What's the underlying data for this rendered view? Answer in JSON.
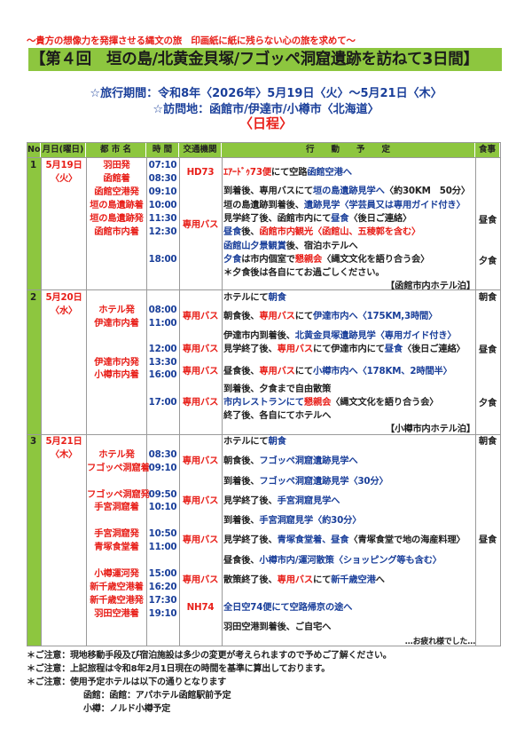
{
  "header": {
    "tagline": "～貴方の想像力を発揮させる縄文の旅　印画紙に紙に残らない心の旅を求めて～",
    "title": "【第４回　垣の島/北黄金貝塚/フゴッペ洞窟遺跡を訪ねて3日間】",
    "period": "☆旅行期間：令和8年〈2026年〉5月19日〈火〉～5月21日〈木〉",
    "visit": "☆訪問地：函館市/伊達市/小樽市〈北海道〉",
    "schedule_label": "〈日程〉"
  },
  "colors": {
    "accent_green": "#8dc63f",
    "red": "#e8201a",
    "blue": "#1a3f9a"
  },
  "table": {
    "columns": [
      "No",
      "月日(曜日)",
      "都 市 名",
      "時 間",
      "交通機関",
      "行　　動　　予　　定",
      "食事"
    ],
    "days": [
      {
        "no": "1",
        "date": "5月19日",
        "weekday": "〈火〉",
        "cities": [
          "羽田発",
          "函館着",
          "函館空港発",
          "垣の島遺跡着",
          "垣の島遺跡発",
          "函館市内着"
        ],
        "times": [
          "07:10",
          "08:30",
          "09:10",
          "10:00",
          "11:30",
          "12:30",
          "18:00"
        ],
        "transport": [
          "HD73",
          "専用バス"
        ],
        "actions": [
          [
            {
              "t": "ｴｱｰﾄﾞｩ73便",
              "c": "red"
            },
            {
              "t": "にて空路",
              "c": "black"
            },
            {
              "t": "函館空港へ",
              "c": "blue"
            }
          ],
          [
            {
              "t": "到着後、専用バスにて",
              "c": "black"
            },
            {
              "t": "垣の島遺跡見学へ",
              "c": "blue"
            },
            {
              "t": "〈約30KM　50分〉",
              "c": "black"
            }
          ],
          [
            {
              "t": "垣の島遺跡到着後、",
              "c": "black"
            },
            {
              "t": "遺跡見学〈学芸員又は専用ガイド付き〉",
              "c": "blue"
            }
          ],
          [
            {
              "t": "見学終了後、函館市内にて",
              "c": "black"
            },
            {
              "t": "昼食",
              "c": "blue"
            },
            {
              "t": "〈後日ご連絡〉",
              "c": "black"
            }
          ],
          [
            {
              "t": "昼食",
              "c": "blue"
            },
            {
              "t": "後、",
              "c": "black"
            },
            {
              "t": "函館市内観光〈函館山、五稜郭を含む〉",
              "c": "red"
            }
          ],
          [
            {
              "t": "函館山夕景観賞",
              "c": "blue"
            },
            {
              "t": "後、宿泊ホテルへ",
              "c": "black"
            }
          ],
          [
            {
              "t": "夕食",
              "c": "blue"
            },
            {
              "t": "は市内個室で",
              "c": "black"
            },
            {
              "t": "懇親会",
              "c": "red"
            },
            {
              "t": "〈縄文文化を語り合う会〉",
              "c": "black"
            }
          ],
          [
            {
              "t": "＊夕食後は各自にてお過ごしください。",
              "c": "black"
            }
          ],
          [
            {
              "t": "【函館市内ホテル泊】",
              "c": "black"
            }
          ]
        ],
        "meals": [
          "昼食",
          "夕食"
        ]
      },
      {
        "no": "2",
        "date": "5月20日",
        "weekday": "〈水〉",
        "cities": [
          "ホテル発",
          "伊達市内着",
          "伊達市内発",
          "小樽市内着"
        ],
        "times": [
          "08:00",
          "11:00",
          "12:00",
          "13:30",
          "16:00",
          "17:00"
        ],
        "transport": [
          "専用バス",
          "専用バス",
          "専用バス",
          "専用バス"
        ],
        "actions": [
          [
            {
              "t": "ホテルにて",
              "c": "black"
            },
            {
              "t": "朝食",
              "c": "blue"
            }
          ],
          [
            {
              "t": "朝食後、",
              "c": "black"
            },
            {
              "t": "専用バス",
              "c": "red"
            },
            {
              "t": "にて",
              "c": "black"
            },
            {
              "t": "伊達市内へ〈175KM,3時間〉",
              "c": "blue"
            }
          ],
          [
            {
              "t": "伊達市内到着後、",
              "c": "black"
            },
            {
              "t": "北黄金貝塚遺跡見学〈専用ガイド付き〉",
              "c": "blue"
            }
          ],
          [
            {
              "t": "見学終了後、",
              "c": "black"
            },
            {
              "t": "専用バス",
              "c": "red"
            },
            {
              "t": "にて伊達市内にて",
              "c": "black"
            },
            {
              "t": "昼食",
              "c": "blue"
            },
            {
              "t": "〈後日ご連絡〉",
              "c": "black"
            }
          ],
          [
            {
              "t": "昼食後、",
              "c": "black"
            },
            {
              "t": "専用バス",
              "c": "red"
            },
            {
              "t": "にて",
              "c": "black"
            },
            {
              "t": "小樽市内へ〈178KM、2時間半〉",
              "c": "blue"
            }
          ],
          [
            {
              "t": "到着後、夕食まで自由散策",
              "c": "black"
            }
          ],
          [
            {
              "t": "市内レストランにて",
              "c": "blue"
            },
            {
              "t": "懇親会",
              "c": "red"
            },
            {
              "t": "〈縄文文化を語り合う会〉",
              "c": "black"
            }
          ],
          [
            {
              "t": "終了後、各自にてホテルへ",
              "c": "black"
            }
          ],
          [
            {
              "t": "【小樽市内ホテル泊】",
              "c": "black"
            }
          ]
        ],
        "meals": [
          "朝食",
          "昼食",
          "夕食"
        ]
      },
      {
        "no": "3",
        "date": "5月21日",
        "weekday": "〈木〉",
        "cities": [
          "ホテル発",
          "フゴッペ洞窟着",
          "フゴッペ洞窟発",
          "手宮洞窟着",
          "手宮洞窟発",
          "青塚食堂着",
          "小樽運河発",
          "新千歳空港着",
          "新千歳空港発",
          "羽田空港着"
        ],
        "times": [
          "08:30",
          "09:10",
          "09:50",
          "10:10",
          "10:50",
          "11:00",
          "15:00",
          "16:20",
          "17:30",
          "19:10"
        ],
        "transport": [
          "専用バス",
          "専用バス",
          "専用バス",
          "専用バス",
          "NH74"
        ],
        "actions": [
          [
            {
              "t": "ホテルにて",
              "c": "black"
            },
            {
              "t": "朝食",
              "c": "blue"
            }
          ],
          [
            {
              "t": "朝食後、",
              "c": "black"
            },
            {
              "t": "フゴッペ洞窟遺跡見学へ",
              "c": "blue"
            }
          ],
          [
            {
              "t": "到着後、",
              "c": "black"
            },
            {
              "t": "フゴッペ洞窟遺跡見学〈30分〉",
              "c": "blue"
            }
          ],
          [
            {
              "t": "見学終了後、",
              "c": "black"
            },
            {
              "t": "手宮洞窟見学へ",
              "c": "blue"
            }
          ],
          [
            {
              "t": "到着後、",
              "c": "black"
            },
            {
              "t": "手宮洞窟見学〈約30分〉",
              "c": "blue"
            }
          ],
          [
            {
              "t": "見学終了後、",
              "c": "black"
            },
            {
              "t": "青塚食堂着、昼食",
              "c": "blue"
            },
            {
              "t": "〈青塚食堂で地の海産料理〉",
              "c": "black"
            }
          ],
          [
            {
              "t": "昼食後、",
              "c": "black"
            },
            {
              "t": "小樽市内/運河散策〈ショッピング等も含む〉",
              "c": "blue"
            }
          ],
          [
            {
              "t": "散策終了後、",
              "c": "black"
            },
            {
              "t": "専用バス",
              "c": "red"
            },
            {
              "t": "にて",
              "c": "black"
            },
            {
              "t": "新千歳空港",
              "c": "blue"
            },
            {
              "t": "へ",
              "c": "black"
            }
          ],
          [
            {
              "t": "全日空74便にて空路帰京の途へ",
              "c": "blue"
            }
          ],
          [
            {
              "t": "羽田空港到着後、ご自宅へ",
              "c": "black"
            }
          ],
          [
            {
              "t": "…お疲れ様でした…",
              "c": "black"
            }
          ]
        ],
        "meals": [
          "朝食",
          "昼食"
        ]
      }
    ]
  },
  "notes": [
    "＊ご注意：現地移動手段及び宿泊施設は多少の変更が考えられますので予めご了解ください。",
    "＊ご注意：上記旅程は令和8年2月1日現在の時間を基準に算出しております。",
    "＊ご注意：使用予定ホテルは以下の通りとなります",
    "函館：函館：アパホテル函館駅前予定",
    "小樽：ノルド小樽予定"
  ]
}
